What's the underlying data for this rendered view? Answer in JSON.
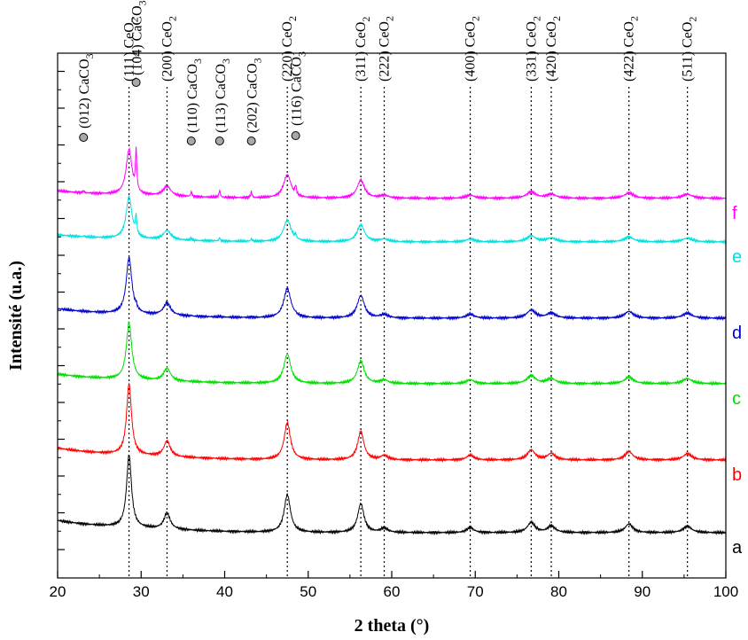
{
  "chart_data": {
    "type": "line",
    "xlabel": "2 theta (°)",
    "ylabel": "Intensité (u.a.)",
    "xlim": [
      20,
      100
    ],
    "x_ticks": [
      "20",
      "30",
      "40",
      "50",
      "60",
      "70",
      "80",
      "90",
      "100"
    ],
    "y_ticks": "unlabeled",
    "grid": false,
    "reference_lines": [
      {
        "x": 28.55,
        "label": "(111) CeO",
        "sub": "2"
      },
      {
        "x": 33.1,
        "label": "(200) CeO",
        "sub": "2"
      },
      {
        "x": 47.5,
        "label": "(220) CeO",
        "sub": "2"
      },
      {
        "x": 56.3,
        "label": "(311) CeO",
        "sub": "2"
      },
      {
        "x": 59.1,
        "label": "(222) CeO",
        "sub": "2"
      },
      {
        "x": 69.4,
        "label": "(400) CeO",
        "sub": "2"
      },
      {
        "x": 76.7,
        "label": "(331) CeO",
        "sub": "2"
      },
      {
        "x": 79.1,
        "label": "(420) CeO",
        "sub": "2"
      },
      {
        "x": 88.4,
        "label": "(422) CeO",
        "sub": "2"
      },
      {
        "x": 95.4,
        "label": "(511) CeO",
        "sub": "2"
      }
    ],
    "caco3_peaks": [
      {
        "x": 23.1,
        "label": "(012) CaCO",
        "sub": "3"
      },
      {
        "x": 29.4,
        "label": "(104) CaCO",
        "sub": "3"
      },
      {
        "x": 36.0,
        "label": "(110) CaCO",
        "sub": "3"
      },
      {
        "x": 39.4,
        "label": "(113) CaCO",
        "sub": "3"
      },
      {
        "x": 43.2,
        "label": "(202) CaCO",
        "sub": "3"
      },
      {
        "x": 48.5,
        "label": "(116) CaCO",
        "sub": "3"
      }
    ],
    "series": [
      {
        "name": "a",
        "color": "#000000",
        "offset": 0,
        "scale": 1.0,
        "caco3": 0,
        "broad": 1.0
      },
      {
        "name": "b",
        "color": "#ff0000",
        "offset": 1.0,
        "scale": 0.98,
        "caco3": 0,
        "broad": 1.0
      },
      {
        "name": "c",
        "color": "#00dd00",
        "offset": 2.05,
        "scale": 0.78,
        "caco3": 0,
        "broad": 1.1
      },
      {
        "name": "d",
        "color": "#0000cc",
        "offset": 2.95,
        "scale": 0.78,
        "caco3": 0.05,
        "broad": 1.15
      },
      {
        "name": "e",
        "color": "#00e0e0",
        "offset": 4.0,
        "scale": 0.58,
        "caco3": 0.25,
        "broad": 1.2
      },
      {
        "name": "f",
        "color": "#ff00ff",
        "offset": 4.6,
        "scale": 0.62,
        "caco3": 0.55,
        "broad": 1.2
      }
    ]
  }
}
